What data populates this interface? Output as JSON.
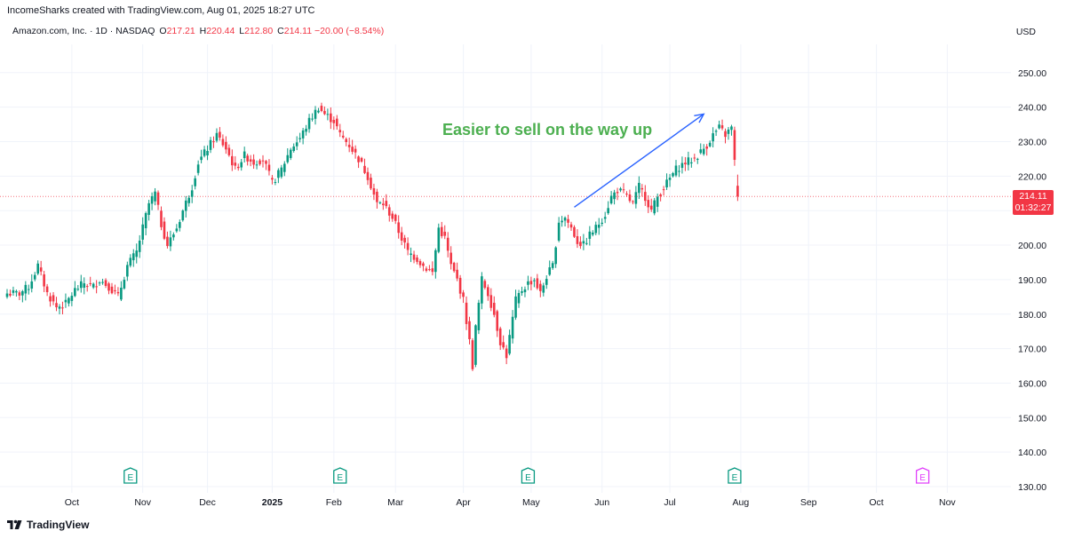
{
  "header": {
    "credit": "IncomeSharks created with TradingView.com, Aug 01, 2025 18:27 UTC",
    "symbol_name": "Amazon.com, Inc. · 1D · NASDAQ",
    "open_label": "O",
    "open": "217.21",
    "high_label": "H",
    "high": "220.44",
    "low_label": "L",
    "low": "212.80",
    "close_label": "C",
    "close": "214.11",
    "change": "−20.00 (−8.54%)",
    "currency": "USD"
  },
  "price_tag": {
    "price": "214.11",
    "countdown": "01:32:27"
  },
  "annotation": "Easier to sell on the way up",
  "footer": {
    "brand": "TradingView"
  },
  "colors": {
    "up": "#089981",
    "down": "#f23645",
    "arrow": "#2962ff",
    "annotation": "#4caf50",
    "earnings_future": "#e040fb"
  },
  "chart_data": {
    "type": "candlestick",
    "title": "Amazon.com, Inc. · 1D · NASDAQ",
    "ylim": [
      125,
      260
    ],
    "y_ticks": [
      130,
      140,
      150,
      160,
      170,
      180,
      190,
      200,
      210,
      220,
      230,
      240,
      250
    ],
    "y_tick_labels": [
      "130.00",
      "140.00",
      "150.00",
      "160.00",
      "170.00",
      "180.00",
      "190.00",
      "200.00",
      "210.00",
      "220.00",
      "230.00",
      "240.00",
      "250.00"
    ],
    "x_ticks": [
      {
        "label": "Oct",
        "day": 21,
        "bold": false
      },
      {
        "label": "Nov",
        "day": 44,
        "bold": false
      },
      {
        "label": "Dec",
        "day": 65,
        "bold": false
      },
      {
        "label": "2025",
        "day": 86,
        "bold": true
      },
      {
        "label": "Feb",
        "day": 106,
        "bold": false
      },
      {
        "label": "Mar",
        "day": 126,
        "bold": false
      },
      {
        "label": "Apr",
        "day": 148,
        "bold": false
      },
      {
        "label": "May",
        "day": 170,
        "bold": false
      },
      {
        "label": "Jun",
        "day": 193,
        "bold": false
      },
      {
        "label": "Jul",
        "day": 215,
        "bold": false
      },
      {
        "label": "Aug",
        "day": 238,
        "bold": false
      },
      {
        "label": "Sep",
        "day": 260,
        "bold": false
      },
      {
        "label": "Oct",
        "day": 282,
        "bold": false
      },
      {
        "label": "Nov",
        "day": 305,
        "bold": false
      }
    ],
    "last_price": 214.11,
    "earnings_markers": [
      {
        "day": 40,
        "label": "E",
        "future": false
      },
      {
        "day": 108,
        "label": "E",
        "future": false
      },
      {
        "day": 169,
        "label": "E",
        "future": false
      },
      {
        "day": 236,
        "label": "E",
        "future": false
      },
      {
        "day": 297,
        "label": "E",
        "future": true
      }
    ],
    "trend_arrow": {
      "from": {
        "day": 184,
        "price": 211
      },
      "to": {
        "day": 226,
        "price": 238
      }
    },
    "anchors": [
      [
        0,
        186
      ],
      [
        4,
        186
      ],
      [
        7,
        188
      ],
      [
        10,
        194
      ],
      [
        13,
        186
      ],
      [
        16,
        182
      ],
      [
        19,
        183
      ],
      [
        22,
        187
      ],
      [
        25,
        189
      ],
      [
        28,
        188
      ],
      [
        30,
        190
      ],
      [
        33,
        188
      ],
      [
        36,
        185
      ],
      [
        39,
        194
      ],
      [
        42,
        198
      ],
      [
        44,
        205
      ],
      [
        46,
        212
      ],
      [
        48,
        215
      ],
      [
        50,
        206
      ],
      [
        52,
        200
      ],
      [
        55,
        205
      ],
      [
        57,
        210
      ],
      [
        60,
        217
      ],
      [
        62,
        224
      ],
      [
        65,
        228
      ],
      [
        68,
        232
      ],
      [
        71,
        228
      ],
      [
        74,
        222
      ],
      [
        77,
        226
      ],
      [
        80,
        224
      ],
      [
        83,
        225
      ],
      [
        86,
        218
      ],
      [
        89,
        222
      ],
      [
        92,
        228
      ],
      [
        95,
        231
      ],
      [
        98,
        236
      ],
      [
        101,
        240
      ],
      [
        103,
        238
      ],
      [
        106,
        236
      ],
      [
        108,
        232
      ],
      [
        111,
        229
      ],
      [
        114,
        225
      ],
      [
        117,
        220
      ],
      [
        120,
        212
      ],
      [
        122,
        212
      ],
      [
        125,
        208
      ],
      [
        127,
        204
      ],
      [
        130,
        198
      ],
      [
        133,
        196
      ],
      [
        135,
        194
      ],
      [
        138,
        192
      ],
      [
        140,
        205
      ],
      [
        142,
        202
      ],
      [
        144,
        194
      ],
      [
        146,
        190
      ],
      [
        148,
        184
      ],
      [
        150,
        172
      ],
      [
        151,
        165
      ],
      [
        152,
        176
      ],
      [
        154,
        190
      ],
      [
        156,
        186
      ],
      [
        158,
        180
      ],
      [
        160,
        172
      ],
      [
        162,
        168
      ],
      [
        165,
        184
      ],
      [
        167,
        187
      ],
      [
        169,
        189
      ],
      [
        171,
        190
      ],
      [
        173,
        186
      ],
      [
        175,
        191
      ],
      [
        177,
        194
      ],
      [
        179,
        207
      ],
      [
        181,
        208
      ],
      [
        183,
        205
      ],
      [
        185,
        201
      ],
      [
        187,
        200
      ],
      [
        189,
        203
      ],
      [
        191,
        205
      ],
      [
        194,
        209
      ],
      [
        196,
        214
      ],
      [
        198,
        216
      ],
      [
        200,
        215
      ],
      [
        203,
        212
      ],
      [
        205,
        217
      ],
      [
        207,
        214
      ],
      [
        209,
        210
      ],
      [
        211,
        214
      ],
      [
        214,
        218
      ],
      [
        217,
        222
      ],
      [
        220,
        224
      ],
      [
        223,
        225
      ],
      [
        225,
        227
      ],
      [
        227,
        229
      ],
      [
        229,
        232
      ],
      [
        231,
        234
      ],
      [
        233,
        232
      ],
      [
        235,
        234
      ],
      [
        237,
        214.11
      ]
    ]
  }
}
